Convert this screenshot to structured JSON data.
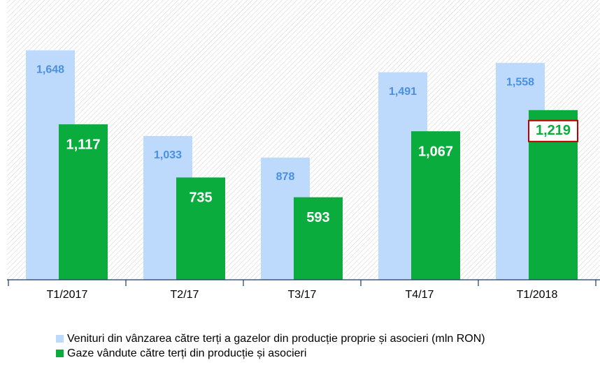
{
  "chart_data": {
    "type": "bar",
    "categories": [
      "T1/2017",
      "T2/17",
      "T3/17",
      "T4/17",
      "T1/2018"
    ],
    "series": [
      {
        "name": "Venituri din vânzarea către terți a gazelor din producție proprie și asocieri (mln RON)",
        "color": "#bdd9fb",
        "label_color": "#4a90e2",
        "values": [
          1648,
          1033,
          878,
          1491,
          1558
        ],
        "value_labels": [
          "1,648",
          "1,033",
          "878",
          "1,491",
          "1,558"
        ]
      },
      {
        "name": "Gaze vândute către terți din producție și asocieri",
        "color": "#0bac3e",
        "label_color": "#ffffff",
        "values": [
          1117,
          735,
          593,
          1067,
          1219
        ],
        "value_labels": [
          "1,117",
          "735",
          "593",
          "1,067",
          "1,219"
        ],
        "highlighted": 4
      }
    ],
    "ylim": [
      0,
      2000
    ]
  }
}
